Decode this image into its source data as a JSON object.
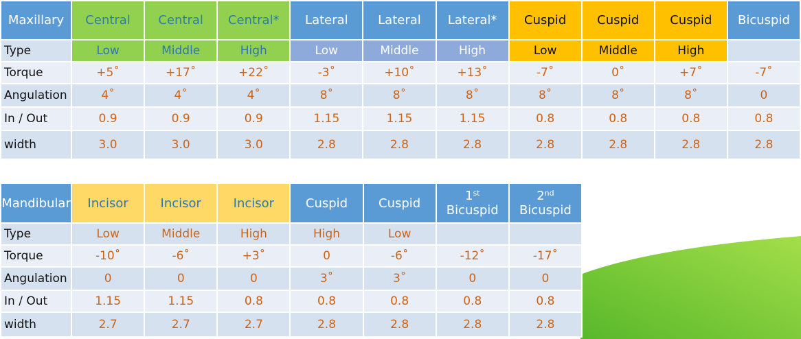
{
  "maxillary": {
    "headers": [
      "Maxillary",
      "Central",
      "Central",
      "Central*",
      "Lateral",
      "Lateral",
      "Lateral*",
      "Cuspid",
      "Cuspid",
      "Cuspid",
      "Bicuspid"
    ],
    "rows": [
      {
        "label": "Type",
        "cells": [
          "Low",
          "Middle",
          "High",
          "Low",
          "Middle",
          "High",
          "Low",
          "Middle",
          "High",
          ""
        ]
      },
      {
        "label": "Torque",
        "cells": [
          "+5˚",
          "+17˚",
          "+22˚",
          "-3˚",
          "+10˚",
          "+13˚",
          "-7˚",
          "0˚",
          "+7˚",
          "-7˚"
        ]
      },
      {
        "label": "Angulation",
        "cells": [
          "4˚",
          "4˚",
          "4˚",
          "8˚",
          "8˚",
          "8˚",
          "8˚",
          "8˚",
          "8˚",
          "0"
        ]
      },
      {
        "label": "In / Out",
        "cells": [
          "0.9",
          "0.9",
          "0.9",
          "1.15",
          "1.15",
          "1.15",
          "0.8",
          "0.8",
          "0.8",
          "0.8"
        ]
      },
      {
        "label": "width",
        "cells": [
          "3.0",
          "3.0",
          "3.0",
          "2.8",
          "2.8",
          "2.8",
          "2.8",
          "2.8",
          "2.8",
          "2.8"
        ]
      }
    ]
  },
  "mandibular": {
    "headers": [
      "Mandibular",
      "Incisor",
      "Incisor",
      "Incisor",
      "Cuspid",
      "Cuspid"
    ],
    "bicuspid_headers": [
      {
        "num": "1",
        "sup": "st",
        "word": "Bicuspid"
      },
      {
        "num": "2",
        "sup": "nd",
        "word": "Bicuspid"
      }
    ],
    "rows": [
      {
        "label": "Type",
        "cells": [
          "Low",
          "Middle",
          "High",
          "High",
          "Low",
          "",
          ""
        ]
      },
      {
        "label": "Torque",
        "cells": [
          "-10˚",
          "-6˚",
          "+3˚",
          "0",
          "-6˚",
          "-12˚",
          "-17˚"
        ]
      },
      {
        "label": "Angulation",
        "cells": [
          "0",
          "0",
          "0",
          "3˚",
          "3˚",
          "0",
          "0"
        ]
      },
      {
        "label": "In / Out",
        "cells": [
          "1.15",
          "1.15",
          "0.8",
          "0.8",
          "0.8",
          "0.8",
          "0.8"
        ]
      },
      {
        "label": "width",
        "cells": [
          "2.7",
          "2.7",
          "2.7",
          "2.8",
          "2.8",
          "2.8",
          "2.8"
        ]
      }
    ]
  },
  "colors": {
    "header_blue": "#5b9bd5",
    "central_green": "#92d050",
    "cuspid_orange": "#ffc000",
    "incisor_yellow": "#ffd966",
    "lateral_type_blue": "#8eaadb",
    "value_text": "#c8651b"
  }
}
